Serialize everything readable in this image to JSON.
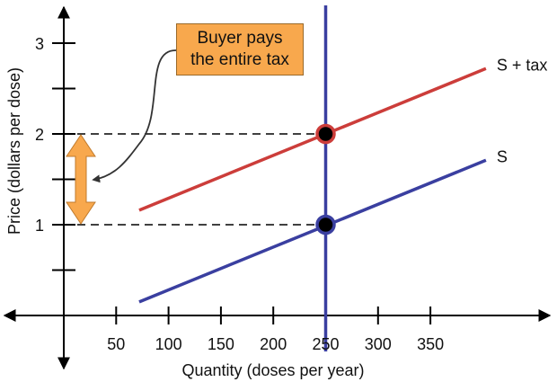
{
  "chart_data": {
    "type": "line",
    "xlabel": "Quantity (doses per year)",
    "ylabel": "Price (dollars per dose)",
    "x_ticks": [
      "50",
      "100",
      "150",
      "200",
      "250",
      "300",
      "350"
    ],
    "y_ticks": [
      "1",
      "2",
      "3"
    ],
    "xlim": [
      -6,
      405
    ],
    "ylim": [
      -0.55,
      3.45
    ],
    "series": [
      {
        "name": "S",
        "x": [
          72,
          403
        ],
        "y": [
          0.15,
          1.71
        ],
        "color": "#3a3fa0"
      },
      {
        "name": "S + tax",
        "x": [
          72,
          403
        ],
        "y": [
          1.16,
          2.72
        ],
        "color": "#cc3d3a"
      },
      {
        "name": "",
        "x": [
          250,
          250
        ],
        "y": [
          -0.1,
          3.43
        ],
        "color": "#3a3fa0"
      }
    ],
    "points": [
      {
        "x": 250,
        "y": 1,
        "ring": "#3a3fa0"
      },
      {
        "x": 250,
        "y": 2,
        "ring": "#cc3d3a"
      }
    ],
    "reference_lines": [
      1,
      2
    ],
    "annotation": {
      "lines": [
        "Buyer pays",
        "the entire tax"
      ],
      "fill": "#f8a84d",
      "arrow_range": [
        1,
        2
      ]
    }
  }
}
